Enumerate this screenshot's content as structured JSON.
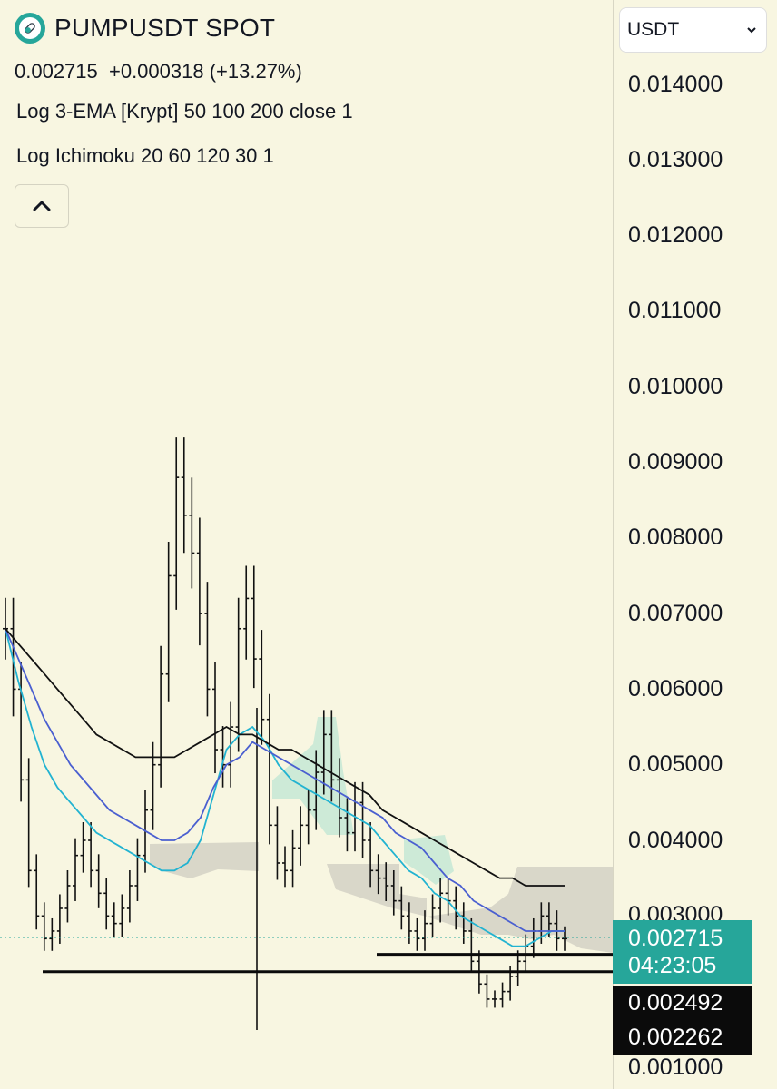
{
  "header": {
    "symbol": "PUMPUSDT SPOT",
    "price_change": "0.002715  +0.000318 (+13.27%)",
    "indicator_ema": "Log 3-EMA [Krypt] 50 100 200 close 1",
    "indicator_ichimoku": "Log Ichimoku 20 60 120 30 1",
    "collapse_icon": "chevron-up-icon",
    "logo_icon": "pill-token-icon"
  },
  "currency": {
    "selected": "USDT"
  },
  "axis": {
    "tick_labels": [
      "0.014000",
      "0.013000",
      "0.012000",
      "0.011000",
      "0.010000",
      "0.009000",
      "0.008000",
      "0.007000",
      "0.006000",
      "0.005000",
      "0.004000",
      "0.003000",
      "0.001000"
    ]
  },
  "price_labels": {
    "last_price": "0.002715",
    "countdown": "04:23:05",
    "level_1": "0.002492",
    "level_2": "0.002262"
  },
  "colors": {
    "background": "#f8f6e1",
    "last_price": "#26a69a",
    "ema_fast": "#22b3d1",
    "ema_mid": "#4a5fd0",
    "ema_slow": "#111111",
    "cloud_bull": "#c5e8d5",
    "cloud_bear": "#d3d1c4",
    "level_box": "#0b0b0b"
  },
  "chart_data": {
    "type": "line",
    "ylim": [
      0.001,
      0.014
    ],
    "grid": false,
    "series": [
      {
        "values": [
          0.0068,
          0.0061,
          0.0055,
          0.005,
          0.0047,
          0.0045,
          0.0043,
          0.0041,
          0.004,
          0.0039,
          0.0038,
          0.0037,
          0.0036,
          0.0036,
          0.0037,
          0.004,
          0.0046,
          0.0052,
          0.0054,
          0.0055,
          0.0053,
          0.005,
          0.0048,
          0.0047,
          0.0046,
          0.0045,
          0.0044,
          0.0043,
          0.0042,
          0.004,
          0.0038,
          0.0036,
          0.0035,
          0.0033,
          0.0032,
          0.003,
          0.0029,
          0.0028,
          0.0027,
          0.0026,
          0.0026,
          0.0027,
          0.0028,
          0.0028
        ]
      },
      {
        "values": [
          0.0068,
          0.0064,
          0.006,
          0.0056,
          0.0053,
          0.005,
          0.0048,
          0.0046,
          0.0044,
          0.0043,
          0.0042,
          0.0041,
          0.004,
          0.004,
          0.0041,
          0.0043,
          0.0047,
          0.005,
          0.0051,
          0.0053,
          0.0052,
          0.0051,
          0.005,
          0.0049,
          0.0048,
          0.0047,
          0.0046,
          0.0045,
          0.0044,
          0.0043,
          0.0041,
          0.004,
          0.0039,
          0.0037,
          0.0035,
          0.0034,
          0.0032,
          0.0031,
          0.003,
          0.0029,
          0.0028,
          0.0028,
          0.0028,
          0.0028
        ]
      },
      {
        "values": [
          0.0068,
          0.0066,
          0.0064,
          0.0062,
          0.006,
          0.0058,
          0.0056,
          0.0054,
          0.0053,
          0.0052,
          0.0051,
          0.0051,
          0.0051,
          0.0051,
          0.0052,
          0.0053,
          0.0054,
          0.0055,
          0.0054,
          0.0054,
          0.0053,
          0.0052,
          0.0052,
          0.0051,
          0.005,
          0.0049,
          0.0048,
          0.0047,
          0.0046,
          0.0044,
          0.0043,
          0.0042,
          0.0041,
          0.004,
          0.0039,
          0.0038,
          0.0037,
          0.0036,
          0.0035,
          0.0035,
          0.0034,
          0.0034,
          0.0034,
          0.0034
        ]
      }
    ],
    "price_series": [
      0.0068,
      0.006,
      0.0048,
      0.0036,
      0.003,
      0.0027,
      0.0028,
      0.0031,
      0.0034,
      0.0038,
      0.004,
      0.0036,
      0.0033,
      0.003,
      0.0029,
      0.0031,
      0.0034,
      0.0038,
      0.0044,
      0.005,
      0.0062,
      0.0075,
      0.0088,
      0.0083,
      0.0078,
      0.007,
      0.006,
      0.0052,
      0.005,
      0.0055,
      0.0068,
      0.0072,
      0.0064,
      0.0056,
      0.0042,
      0.0037,
      0.0036,
      0.0039,
      0.0042,
      0.0044,
      0.0049,
      0.0054,
      0.0048,
      0.0043,
      0.0041,
      0.0045,
      0.004,
      0.0036,
      0.0035,
      0.0034,
      0.0032,
      0.003,
      0.0028,
      0.0027,
      0.0029,
      0.0031,
      0.0033,
      0.0032,
      0.003,
      0.0028,
      0.0024,
      0.0021,
      0.0019,
      0.0019,
      0.002,
      0.0022,
      0.0024,
      0.0026,
      0.0028,
      0.003,
      0.0029,
      0.0027,
      0.0027
    ],
    "horizontal_levels": [
      0.002492,
      0.002262
    ],
    "last_price": 0.002715
  }
}
